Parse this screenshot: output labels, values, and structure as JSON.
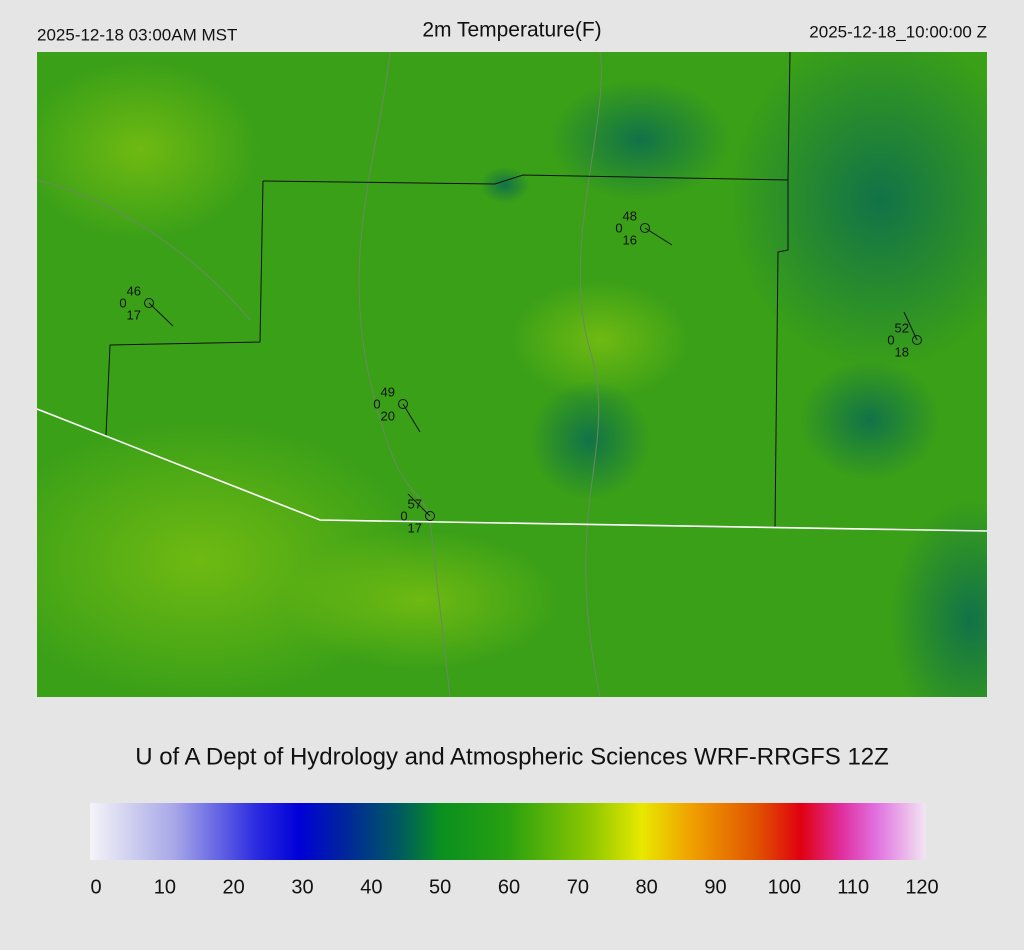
{
  "header": {
    "left": "2025-12-18 03:00AM MST",
    "title": "2m Temperature(F)",
    "right": "2025-12-18_10:00:00 Z"
  },
  "stations": [
    {
      "temp": 46,
      "code": 0,
      "dew": 17
    },
    {
      "temp": 48,
      "code": 0,
      "dew": 16
    },
    {
      "temp": 49,
      "code": 0,
      "dew": 20
    },
    {
      "temp": 52,
      "code": 0,
      "dew": 18
    },
    {
      "temp": 57,
      "code": 0,
      "dew": 17
    }
  ],
  "credit": "U of A Dept of Hydrology and Atmospheric Sciences WRF-RRGFS 12Z",
  "colorbar": {
    "range": [
      0,
      120
    ],
    "ticks": [
      0,
      10,
      20,
      30,
      40,
      50,
      60,
      70,
      80,
      90,
      100,
      110,
      120
    ]
  }
}
